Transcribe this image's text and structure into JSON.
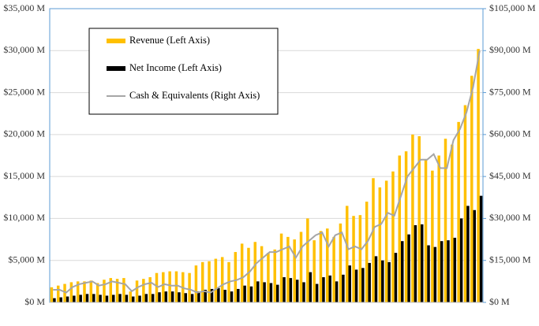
{
  "chart_data": {
    "type": "bar_line",
    "categories": [
      null,
      null,
      null,
      null,
      null,
      null,
      null,
      null,
      null,
      null,
      null,
      null,
      null,
      null,
      null,
      null,
      null,
      null,
      null,
      null,
      null,
      null,
      null,
      null,
      null,
      null,
      null,
      null,
      null,
      null,
      null,
      null,
      null,
      null,
      null,
      null,
      null,
      null,
      null,
      null,
      null,
      null,
      null,
      null,
      null,
      null,
      null,
      null,
      null,
      null,
      null,
      null,
      null,
      null,
      null,
      null,
      null,
      null,
      null,
      null,
      null,
      null,
      null,
      null,
      null,
      null
    ],
    "series": [
      {
        "name": "Revenue (Left Axis)",
        "kind": "bar",
        "color": "#ffc000",
        "values": [
          1800,
          2000,
          2200,
          2400,
          2500,
          2500,
          2600,
          2300,
          2700,
          2900,
          2800,
          2900,
          1300,
          2600,
          2800,
          3000,
          3500,
          3600,
          3700,
          3700,
          3600,
          3500,
          4400,
          4800,
          4900,
          5200,
          5400,
          4800,
          6000,
          7000,
          6500,
          7200,
          6700,
          5900,
          6300,
          8200,
          7800,
          7500,
          8400,
          10000,
          7400,
          8500,
          8800,
          7800,
          9400,
          11500,
          10300,
          10400,
          12000,
          14800,
          13700,
          14500,
          15600,
          17500,
          18000,
          20000,
          19800,
          17000,
          15700,
          17500,
          19500,
          18800,
          21500,
          23500,
          27000,
          30200
        ]
      },
      {
        "name": "Net Income (Left Axis)",
        "kind": "bar",
        "color": "#000000",
        "values": [
          500,
          600,
          700,
          800,
          900,
          1000,
          1000,
          900,
          800,
          900,
          1000,
          900,
          700,
          800,
          1000,
          1000,
          1200,
          1300,
          1300,
          1200,
          1100,
          1000,
          1300,
          1500,
          1600,
          1700,
          1500,
          1300,
          1600,
          2000,
          1900,
          2500,
          2400,
          2300,
          2100,
          3000,
          2900,
          2700,
          2400,
          3600,
          2200,
          3000,
          3200,
          2500,
          3300,
          4400,
          3900,
          4100,
          4700,
          5500,
          5000,
          4800,
          5900,
          7300,
          8100,
          9200,
          9300,
          6800,
          6600,
          7300,
          7400,
          7700,
          10000,
          11500,
          11000,
          12700
        ]
      },
      {
        "name": "Cash & Equivalents (Right Axis)",
        "kind": "line",
        "axis": "y2",
        "color": "#a6a6a6",
        "values": [
          4500,
          4500,
          3500,
          5500,
          6500,
          7000,
          7500,
          6000,
          6500,
          7500,
          7000,
          6500,
          4000,
          5500,
          6500,
          7000,
          5500,
          6500,
          6000,
          6000,
          5000,
          4500,
          3500,
          4000,
          3500,
          5000,
          6500,
          7500,
          8000,
          9000,
          11000,
          14000,
          16000,
          18000,
          18000,
          19000,
          20000,
          16000,
          20000,
          22000,
          24000,
          25000,
          20000,
          24000,
          25000,
          19000,
          20000,
          19000,
          22000,
          27000,
          28000,
          32000,
          31000,
          38000,
          45000,
          48000,
          51000,
          51000,
          53000,
          48000,
          48000,
          58000,
          62000,
          68000,
          77000,
          90000
        ]
      }
    ],
    "ylim": [
      0,
      35000
    ],
    "yticks": [
      {
        "value": 0,
        "label": "$0 M"
      },
      {
        "value": 5000,
        "label": "$5,000 M"
      },
      {
        "value": 10000,
        "label": "$10,000 M"
      },
      {
        "value": 15000,
        "label": "$15,000 M"
      },
      {
        "value": 20000,
        "label": "$20,000 M"
      },
      {
        "value": 25000,
        "label": "$25,000 M"
      },
      {
        "value": 30000,
        "label": "$30,000 M"
      },
      {
        "value": 35000,
        "label": "$35,000 M"
      }
    ],
    "y2lim": [
      0,
      105000
    ],
    "y2ticks": [
      {
        "value": 0,
        "label": "$0 M"
      },
      {
        "value": 15000,
        "label": "$15,000 M"
      },
      {
        "value": 30000,
        "label": "$30,000 M"
      },
      {
        "value": 45000,
        "label": "$45,000 M"
      },
      {
        "value": 60000,
        "label": "$60,000 M"
      },
      {
        "value": 75000,
        "label": "$75,000 M"
      },
      {
        "value": 90000,
        "label": "$90,000 M"
      },
      {
        "value": 105000,
        "label": "$105,000 M"
      }
    ],
    "grid": true
  }
}
